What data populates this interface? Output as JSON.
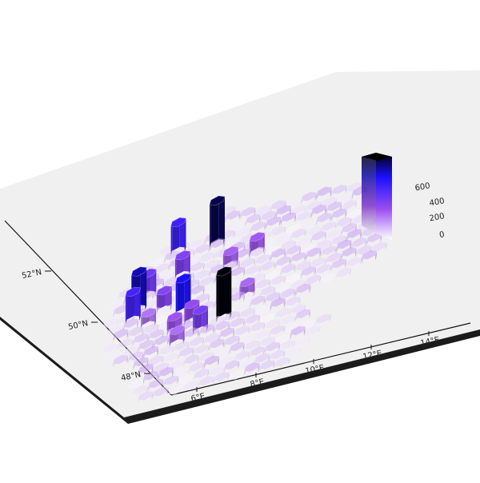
{
  "axes": {
    "lat_ticks": [
      "48°N",
      "50°N",
      "52°N"
    ],
    "lon_ticks": [
      "6°E",
      "8°E",
      "10°E",
      "12°E",
      "14°E"
    ]
  },
  "legend": {
    "ticks": [
      "0",
      "200",
      "400",
      "600"
    ],
    "range": [
      0,
      700
    ],
    "colors": [
      "#ffffff",
      "#8a2be2",
      "#0000ff",
      "#000000"
    ]
  },
  "chart_data": {
    "type": "heatmap",
    "projection": "3d-hexbin",
    "x_axis": "longitude",
    "y_axis": "latitude",
    "xlim": [
      5.5,
      15.5
    ],
    "ylim": [
      47,
      55
    ],
    "value_range": [
      0,
      700
    ],
    "tall_bars": [
      {
        "lon": 10.0,
        "lat": 50.2,
        "value": 690
      },
      {
        "lon": 9.0,
        "lat": 53.5,
        "value": 640
      },
      {
        "lon": 6.9,
        "lat": 51.5,
        "value": 560
      },
      {
        "lon": 8.5,
        "lat": 50.9,
        "value": 500
      },
      {
        "lon": 7.7,
        "lat": 53.6,
        "value": 430
      },
      {
        "lon": 6.8,
        "lat": 51.1,
        "value": 420
      },
      {
        "lon": 7.1,
        "lat": 52.0,
        "value": 330
      },
      {
        "lon": 9.3,
        "lat": 49.9,
        "value": 310
      },
      {
        "lon": 8.1,
        "lat": 52.5,
        "value": 300
      },
      {
        "lon": 7.8,
        "lat": 51.2,
        "value": 290
      },
      {
        "lon": 8.9,
        "lat": 50.4,
        "value": 260
      },
      {
        "lon": 8.4,
        "lat": 50.1,
        "value": 240
      },
      {
        "lon": 10.5,
        "lat": 52.7,
        "value": 230
      },
      {
        "lon": 9.7,
        "lat": 52.4,
        "value": 220
      },
      {
        "lon": 10.6,
        "lat": 50.9,
        "value": 210
      },
      {
        "lon": 8.6,
        "lat": 49.6,
        "value": 200
      },
      {
        "lon": 7.4,
        "lat": 50.7,
        "value": 190
      }
    ]
  }
}
